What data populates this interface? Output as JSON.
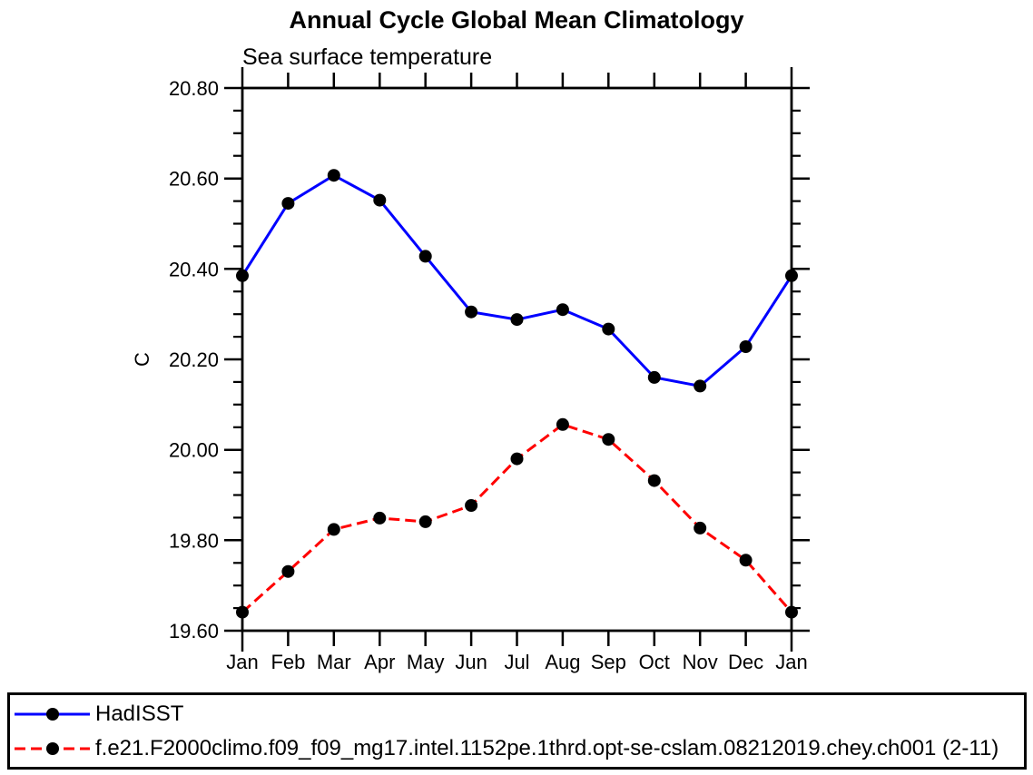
{
  "chart_data": {
    "type": "line",
    "title": "Annual Cycle Global Mean Climatology",
    "subtitle": "Sea surface temperature",
    "xlabel": "",
    "ylabel": "C",
    "x_categories": [
      "Jan",
      "Feb",
      "Mar",
      "Apr",
      "May",
      "Jun",
      "Jul",
      "Aug",
      "Sep",
      "Oct",
      "Nov",
      "Dec",
      "Jan"
    ],
    "ylim": [
      19.6,
      20.8
    ],
    "ytick_major_interval": 0.2,
    "ytick_minor_interval": 0.05,
    "ytick_labels": [
      "19.60",
      "19.80",
      "20.00",
      "20.20",
      "20.40",
      "20.60",
      "20.80"
    ],
    "grid": "off",
    "legend_position": "bottom-box-full-width",
    "axis_color": "#000000",
    "series": [
      {
        "name": "HadISST",
        "color": "#0000ff",
        "line_style": "solid",
        "marker": "filled-circle",
        "marker_color": "#000000",
        "values": [
          20.385,
          20.545,
          20.607,
          20.552,
          20.428,
          20.305,
          20.288,
          20.31,
          20.267,
          20.16,
          20.141,
          20.228,
          20.385
        ]
      },
      {
        "name": "f.e21.F2000climo.f09_f09_mg17.intel.1152pe.1thrd.opt-se-cslam.08212019.chey.ch001 (2-11)",
        "color": "#ff0000",
        "line_style": "dashed",
        "marker": "filled-circle",
        "marker_color": "#000000",
        "values": [
          19.641,
          19.731,
          19.824,
          19.849,
          19.841,
          19.877,
          19.98,
          20.056,
          20.023,
          19.932,
          19.827,
          19.756,
          19.641
        ]
      }
    ]
  }
}
